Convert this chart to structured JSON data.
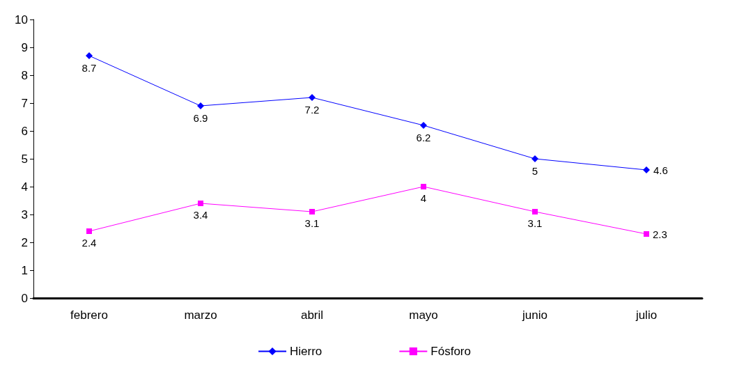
{
  "chart_data": {
    "type": "line",
    "categories": [
      "febrero",
      "marzo",
      "abril",
      "mayo",
      "junio",
      "julio"
    ],
    "series": [
      {
        "name": "Hierro",
        "color": "#0000ff",
        "marker": "diamond",
        "values": [
          8.7,
          6.9,
          7.2,
          6.2,
          5,
          4.6
        ]
      },
      {
        "name": "Fósforo",
        "color": "#ff00ff",
        "marker": "square",
        "values": [
          2.4,
          3.4,
          3.1,
          4,
          3.1,
          2.3
        ]
      }
    ],
    "ylim": [
      0,
      10
    ],
    "yticks": [
      0,
      1,
      2,
      3,
      4,
      5,
      6,
      7,
      8,
      9,
      10
    ],
    "grid": false,
    "legend": "bottom",
    "data_labels": true
  }
}
